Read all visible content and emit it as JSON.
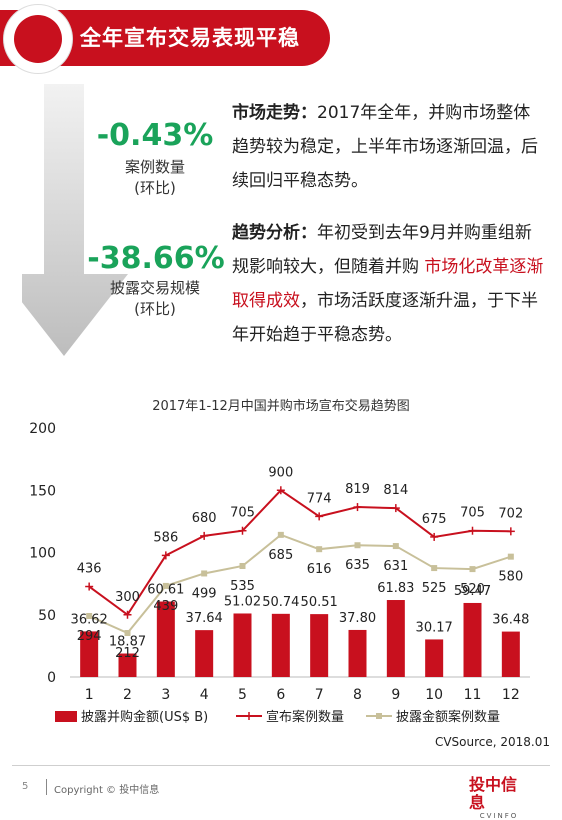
{
  "header": {
    "title": "全年宣布交易表现平稳"
  },
  "stats": [
    {
      "value": "-0.43%",
      "label_line1": "案例数量",
      "label_line2": "(环比)"
    },
    {
      "value": "-38.66%",
      "label_line1": "披露交易规模",
      "label_line2": "(环比)"
    }
  ],
  "paragraphs": {
    "trend_heading": "市场走势：",
    "trend_text": "2017年全年，并购市场整体趋势较为稳定，上半年市场逐渐回温，后续回归平稳态势。",
    "analysis_heading": "趋势分析：",
    "analysis_text_1": "年初受到去年9月并购重组新规影响较大，但随着并购 ",
    "analysis_highlight": "市场化改革逐渐取得成效",
    "analysis_text_2": "，市场活跃度逐渐升温，于下半年开始趋于平稳态势。"
  },
  "chart_data": {
    "type": "bar",
    "title": "2017年1-12月中国并购市场宣布交易趋势图",
    "categories": [
      "1",
      "2",
      "3",
      "4",
      "5",
      "6",
      "7",
      "8",
      "9",
      "10",
      "11",
      "12"
    ],
    "ylim": [
      0,
      200
    ],
    "yticks": [
      0,
      50,
      100,
      150,
      200
    ],
    "series": [
      {
        "name": "披露并购金额(US$ B)",
        "kind": "bar",
        "color": "#c8101e",
        "values": [
          36.62,
          18.87,
          60.61,
          37.64,
          51.02,
          50.74,
          50.51,
          37.8,
          61.83,
          30.17,
          59.47,
          36.48
        ],
        "labels": [
          "36.62",
          "18.87",
          "60.61",
          "37.64",
          "51.02",
          "50.74",
          "50.51",
          "37.80",
          "61.83",
          "30.17",
          "59.47",
          "36.48"
        ]
      },
      {
        "name": "宣布案例数量",
        "kind": "line",
        "color": "#c8101e",
        "values": [
          436,
          300,
          586,
          680,
          705,
          900,
          774,
          819,
          814,
          675,
          705,
          702
        ],
        "labels": [
          "436",
          "300",
          "586",
          "680",
          "705",
          "900",
          "774",
          "819",
          "814",
          "675",
          "705",
          "702"
        ]
      },
      {
        "name": "披露金额案例数量",
        "kind": "line",
        "color": "#c8c09a",
        "values": [
          294,
          212,
          439,
          499,
          535,
          685,
          616,
          635,
          631,
          525,
          520,
          580
        ],
        "labels": [
          "294",
          "212",
          "439",
          "499",
          "535",
          "685",
          "616",
          "635",
          "631",
          "525",
          "520",
          "580"
        ]
      }
    ],
    "legend": "bottom"
  },
  "source": "CVSource, 2018.01",
  "footer": {
    "page": "5",
    "copyright": "Copyright © 投中信息",
    "logo_main": "投中信息",
    "logo_sub": "CVINFO"
  }
}
